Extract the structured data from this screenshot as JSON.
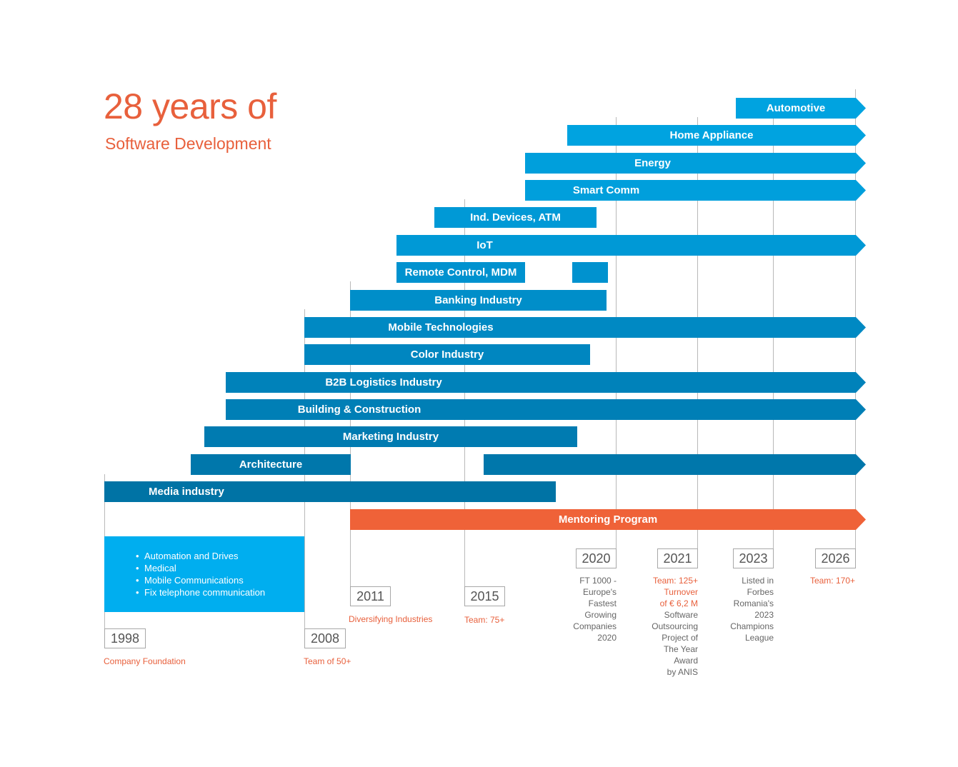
{
  "title": "28 years of",
  "subtitle": "Software Development",
  "bars": {
    "automotive": "Automotive",
    "home_appliance": "Home Appliance",
    "energy": "Energy",
    "smart_comm": "Smart Comm",
    "ind_devices": "Ind. Devices, ATM",
    "iot": "IoT",
    "remote_control": "Remote Control, MDM",
    "banking": "Banking Industry",
    "mobile_tech": "Mobile Technologies",
    "color": "Color Industry",
    "b2b": "B2B Logistics Industry",
    "building": "Building & Construction",
    "marketing": "Marketing Industry",
    "architecture": "Architecture",
    "media": "Media industry",
    "mentoring": "Mentoring Program"
  },
  "years": {
    "y1998": "1998",
    "y2008": "2008",
    "y2011": "2011",
    "y2015": "2015",
    "y2020": "2020",
    "y2021": "2021",
    "y2023": "2023",
    "y2026": "2026"
  },
  "notes": {
    "n1998": "Company Foundation",
    "n2008": "Team of 50+",
    "n2011": "Diversifying Industries",
    "n2015": "Team: 75+",
    "n2020": [
      "FT 1000 -",
      "Europe's",
      "Fastest",
      "Growing",
      "Companies",
      "2020"
    ],
    "n2021_highlight": [
      "Team: 125+",
      "Turnover",
      "of € 6,2 M"
    ],
    "n2021": [
      "Software",
      "Outsourcing",
      "Project of",
      "The Year",
      "Award",
      "by ANIS"
    ],
    "n2023": [
      "Listed in",
      "Forbes",
      "Romania's",
      "2023",
      "Champions",
      "League"
    ],
    "n2026": "Team: 170+"
  },
  "infobox": {
    "items": [
      "Automation and Drives",
      "Medical",
      "Mobile Communications",
      "Fix telephone communication"
    ]
  },
  "colors": {
    "accent": "#e8603c",
    "light_blue": "#00a3e0",
    "mid_blue": "#0090cc",
    "dark_blue": "#0075a6",
    "infobox_blue": "#00aeef"
  }
}
